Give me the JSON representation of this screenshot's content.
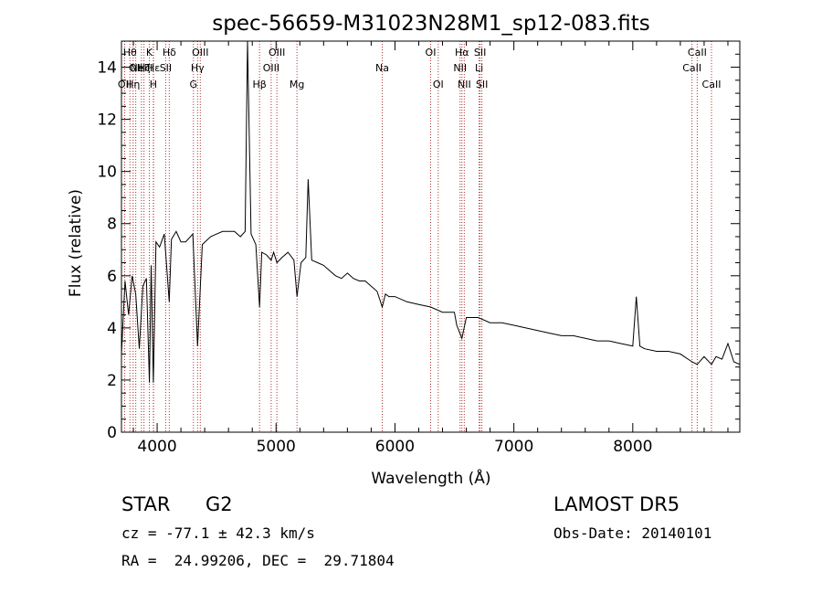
{
  "chart_data": {
    "type": "line",
    "title": "spec-56659-M31023N28M1_sp12-083.fits",
    "xlabel": "Wavelength (Å)",
    "ylabel": "Flux (relative)",
    "xlim": [
      3700,
      8900
    ],
    "ylim": [
      0,
      15
    ],
    "x_ticks": [
      4000,
      5000,
      6000,
      7000,
      8000
    ],
    "y_ticks": [
      0,
      2,
      4,
      6,
      8,
      10,
      12,
      14
    ],
    "grid": false,
    "series": [
      {
        "x": [
          3700,
          3730,
          3760,
          3790,
          3820,
          3850,
          3880,
          3910,
          3935,
          3950,
          3968,
          3990,
          4020,
          4060,
          4102,
          4120,
          4160,
          4200,
          4240,
          4300,
          4340,
          4380,
          4450,
          4500,
          4550,
          4600,
          4650,
          4700,
          4740,
          4760,
          4790,
          4830,
          4861,
          4880,
          4920,
          4959,
          4980,
          5007,
          5050,
          5100,
          5150,
          5176,
          5210,
          5250,
          5270,
          5300,
          5350,
          5400,
          5450,
          5500,
          5550,
          5600,
          5650,
          5700,
          5750,
          5800,
          5850,
          5893,
          5920,
          5950,
          6000,
          6100,
          6200,
          6300,
          6400,
          6500,
          6520,
          6563,
          6600,
          6700,
          6800,
          6900,
          7000,
          7100,
          7200,
          7300,
          7400,
          7500,
          7600,
          7700,
          7800,
          7900,
          8000,
          8030,
          8060,
          8100,
          8200,
          8300,
          8400,
          8498,
          8542,
          8600,
          8662,
          8700,
          8750,
          8800,
          8850,
          8900
        ],
        "y": [
          3.0,
          5.8,
          4.5,
          6.0,
          5.3,
          3.2,
          5.6,
          5.9,
          1.9,
          6.4,
          1.9,
          7.3,
          7.1,
          7.6,
          5.0,
          7.4,
          7.7,
          7.3,
          7.3,
          7.6,
          3.3,
          7.2,
          7.5,
          7.6,
          7.7,
          7.7,
          7.7,
          7.5,
          7.7,
          15.0,
          7.6,
          7.2,
          4.8,
          6.9,
          6.8,
          6.6,
          6.9,
          6.5,
          6.7,
          6.9,
          6.6,
          5.2,
          6.5,
          6.7,
          9.7,
          6.6,
          6.5,
          6.4,
          6.2,
          6.0,
          5.9,
          6.1,
          5.9,
          5.8,
          5.8,
          5.6,
          5.4,
          4.8,
          5.3,
          5.2,
          5.2,
          5.0,
          4.9,
          4.8,
          4.6,
          4.6,
          4.1,
          3.6,
          4.4,
          4.4,
          4.2,
          4.2,
          4.1,
          4.0,
          3.9,
          3.8,
          3.7,
          3.7,
          3.6,
          3.5,
          3.5,
          3.4,
          3.3,
          5.2,
          3.3,
          3.2,
          3.1,
          3.1,
          3.0,
          2.7,
          2.6,
          2.9,
          2.6,
          2.9,
          2.8,
          3.4,
          2.7,
          2.6
        ]
      }
    ],
    "lines": [
      {
        "x": 3727,
        "label": "OII",
        "row": 2
      },
      {
        "x": 3771,
        "label": "Hθ",
        "row": 0
      },
      {
        "x": 3798,
        "label": "Hη",
        "row": 2
      },
      {
        "x": 3820,
        "label": "OII",
        "row": 1
      },
      {
        "x": 3868,
        "label": "NeIII",
        "row": 1
      },
      {
        "x": 3889,
        "label": "Hζ",
        "row": 1
      },
      {
        "x": 3934,
        "label": "K",
        "row": 0
      },
      {
        "x": 3968,
        "label": "H",
        "row": 2
      },
      {
        "x": 3970,
        "label": "Hε",
        "row": 1
      },
      {
        "x": 4072,
        "label": "SII",
        "row": 1
      },
      {
        "x": 4102,
        "label": "Hδ",
        "row": 0
      },
      {
        "x": 4305,
        "label": "G",
        "row": 2
      },
      {
        "x": 4340,
        "label": "Hγ",
        "row": 1
      },
      {
        "x": 4363,
        "label": "OIII",
        "row": 0
      },
      {
        "x": 4861,
        "label": "Hβ",
        "row": 2
      },
      {
        "x": 4959,
        "label": "OIII",
        "row": 1
      },
      {
        "x": 5007,
        "label": "OIII",
        "row": 0
      },
      {
        "x": 5176,
        "label": "Mg",
        "row": 2
      },
      {
        "x": 5893,
        "label": "Na",
        "row": 1
      },
      {
        "x": 6300,
        "label": "OI",
        "row": 0
      },
      {
        "x": 6364,
        "label": "OI",
        "row": 2
      },
      {
        "x": 6548,
        "label": "NII",
        "row": 1
      },
      {
        "x": 6563,
        "label": "Hα",
        "row": 0
      },
      {
        "x": 6583,
        "label": "NII",
        "row": 2
      },
      {
        "x": 6708,
        "label": "Li",
        "row": 1
      },
      {
        "x": 6716,
        "label": "SII",
        "row": 0
      },
      {
        "x": 6731,
        "label": "SII",
        "row": 2
      },
      {
        "x": 8498,
        "label": "CaII",
        "row": 1
      },
      {
        "x": 8542,
        "label": "CaII",
        "row": 0
      },
      {
        "x": 8662,
        "label": "CaII",
        "row": 2
      }
    ]
  },
  "info": {
    "class": "STAR",
    "subclass": "G2",
    "cz": "cz = -77.1 ± 42.3 km/s",
    "radec": "RA =  24.99206, DEC =  29.71804",
    "survey": "LAMOST DR5",
    "obsdate": "Obs-Date: 20140101"
  },
  "colors": {
    "spectrum": "#000000",
    "line_markers": "#b03030",
    "text": "#000000"
  }
}
